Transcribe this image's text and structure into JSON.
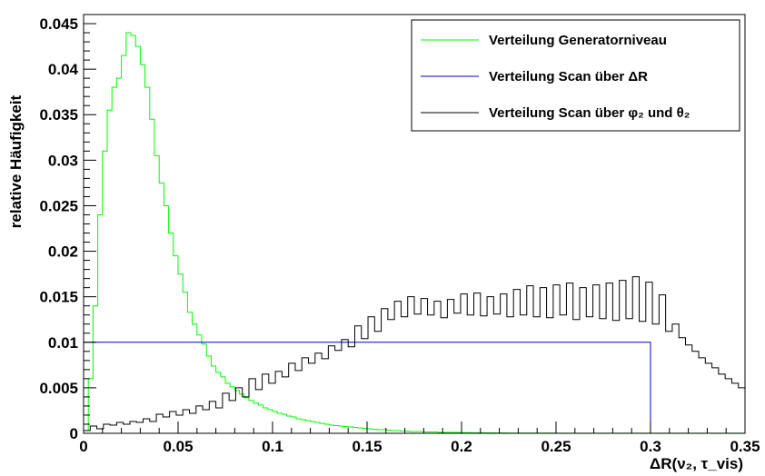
{
  "chart_data": {
    "type": "line",
    "step": true,
    "xlabel": "ΔR(ν₂, τ_vis)",
    "ylabel": "relative Häufigkeit",
    "xlim": [
      0,
      0.35
    ],
    "ylim": [
      0,
      0.046
    ],
    "x_ticks": [
      0,
      0.05,
      0.1,
      0.15,
      0.2,
      0.25,
      0.3,
      0.35
    ],
    "x_tick_labels": [
      "0",
      "0.05",
      "0.1",
      "0.15",
      "0.2",
      "0.25",
      "0.3",
      "0.35"
    ],
    "y_ticks": [
      0,
      0.005,
      0.01,
      0.015,
      0.02,
      0.025,
      0.03,
      0.035,
      0.04,
      0.045
    ],
    "y_tick_labels": [
      "0",
      "0.005",
      "0.01",
      "0.015",
      "0.02",
      "0.025",
      "0.03",
      "0.035",
      "0.04",
      "0.045"
    ],
    "grid": false,
    "legend_position": "top-right",
    "series": [
      {
        "name": "Verteilung Generatorniveau",
        "color": "#00ff00",
        "bin_width": 0.0025,
        "x_start": 0,
        "values": [
          0.0003,
          0.006,
          0.014,
          0.024,
          0.031,
          0.0355,
          0.038,
          0.039,
          0.0415,
          0.044,
          0.0437,
          0.0425,
          0.0405,
          0.038,
          0.0345,
          0.0305,
          0.0275,
          0.025,
          0.022,
          0.0195,
          0.0175,
          0.0155,
          0.0133,
          0.012,
          0.0108,
          0.0098,
          0.0085,
          0.0074,
          0.0067,
          0.0062,
          0.0055,
          0.0051,
          0.0047,
          0.0043,
          0.0039,
          0.0036,
          0.0033,
          0.0031,
          0.0028,
          0.0026,
          0.0024,
          0.0022,
          0.0021,
          0.0019,
          0.0018,
          0.0016,
          0.0015,
          0.0014,
          0.0013,
          0.0012,
          0.0011,
          0.001,
          0.0009,
          0.00085,
          0.0008,
          0.00075,
          0.0007,
          0.00065,
          0.0006,
          0.00055,
          0.0005,
          0.00045,
          0.0004,
          0.0004,
          0.00035,
          0.0003,
          0.0003,
          0.00025,
          0.00025,
          0.0002,
          0.0002,
          0.0002,
          0.00015,
          0.00015,
          0.00015,
          0.0001,
          0.0001,
          0.0001,
          0.0001,
          0.0001,
          8e-05,
          8e-05,
          6e-05,
          6e-05,
          6e-05,
          5e-05,
          5e-05,
          4e-05,
          4e-05,
          4e-05,
          3e-05,
          3e-05,
          3e-05,
          3e-05,
          2e-05,
          2e-05,
          2e-05,
          2e-05,
          2e-05,
          2e-05,
          1e-05,
          1e-05,
          1e-05,
          1e-05,
          1e-05,
          1e-05,
          1e-05,
          1e-05,
          1e-05,
          1e-05,
          1e-05,
          1e-05,
          1e-05,
          1e-05,
          1e-05,
          1e-05,
          1e-05,
          1e-05,
          1e-05,
          1e-05,
          1e-05,
          1e-05,
          1e-05,
          1e-05,
          1e-05,
          1e-05,
          1e-05,
          1e-05,
          1e-05,
          1e-05,
          1e-05,
          1e-05,
          1e-05,
          1e-05,
          1e-05,
          1e-05,
          1e-05,
          1e-05,
          1e-05,
          1e-05
        ]
      },
      {
        "name": "Verteilung Scan über ΔR",
        "color": "#0000cc",
        "bin_width": 0.3,
        "x_start": 0,
        "values": [
          0.01
        ]
      },
      {
        "name": "Verteilung Scan über φ₂ und θ₂",
        "color": "#000000",
        "bin_width": 0.0035,
        "x_start": 0,
        "values": [
          0.0003,
          0.0008,
          0.0005,
          0.001,
          0.0009,
          0.0012,
          0.001,
          0.0013,
          0.0012,
          0.0016,
          0.0013,
          0.0021,
          0.0018,
          0.0024,
          0.002,
          0.0026,
          0.0022,
          0.003,
          0.0026,
          0.0035,
          0.0028,
          0.0044,
          0.0036,
          0.005,
          0.004,
          0.006,
          0.0048,
          0.0065,
          0.0055,
          0.0068,
          0.0062,
          0.0077,
          0.0069,
          0.0083,
          0.0077,
          0.0088,
          0.0082,
          0.0096,
          0.0091,
          0.0103,
          0.0095,
          0.0118,
          0.0104,
          0.0128,
          0.0112,
          0.0137,
          0.0125,
          0.0145,
          0.0128,
          0.015,
          0.0131,
          0.0148,
          0.013,
          0.0145,
          0.0127,
          0.0147,
          0.0132,
          0.0153,
          0.013,
          0.0154,
          0.0129,
          0.015,
          0.0131,
          0.0153,
          0.0128,
          0.0158,
          0.013,
          0.0162,
          0.0128,
          0.016,
          0.0127,
          0.0163,
          0.013,
          0.0165,
          0.0125,
          0.016,
          0.0128,
          0.0163,
          0.0126,
          0.0165,
          0.0124,
          0.0168,
          0.0126,
          0.0172,
          0.0123,
          0.0166,
          0.012,
          0.0152,
          0.0112,
          0.012,
          0.0105,
          0.0097,
          0.009,
          0.0083,
          0.0077,
          0.0072,
          0.0065,
          0.006,
          0.0055,
          0.005
        ]
      }
    ]
  }
}
